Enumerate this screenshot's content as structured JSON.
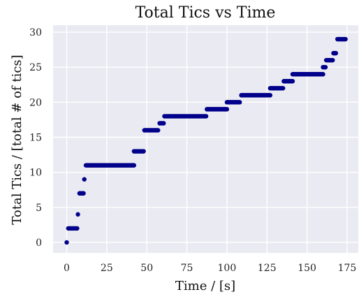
{
  "chart_data": {
    "type": "scatter",
    "title": "Total Tics vs Time",
    "xlabel": "Time / [s]",
    "ylabel": "Total Tics / [total # of tics]",
    "xlim": [
      -8.5,
      182
    ],
    "ylim": [
      -1.5,
      31
    ],
    "xticks": [
      0,
      25,
      50,
      75,
      100,
      125,
      150,
      175
    ],
    "yticks": [
      0,
      5,
      10,
      15,
      20,
      25,
      30
    ],
    "grid": true,
    "background_color": "#EAEAF2",
    "grid_color": "#FFFFFF",
    "point_color": "#00008B",
    "series": [
      {
        "segments": [
          {
            "x_start": 0,
            "x_end": 0,
            "y": 0
          },
          {
            "x_start": 1,
            "x_end": 6.5,
            "y": 2
          },
          {
            "x_start": 7,
            "x_end": 7,
            "y": 4
          },
          {
            "x_start": 8,
            "x_end": 10.5,
            "y": 7
          },
          {
            "x_start": 11,
            "x_end": 11,
            "y": 9
          },
          {
            "x_start": 12,
            "x_end": 42,
            "y": 11
          },
          {
            "x_start": 42,
            "x_end": 48,
            "y": 13
          },
          {
            "x_start": 48.5,
            "x_end": 57,
            "y": 16
          },
          {
            "x_start": 58,
            "x_end": 60.5,
            "y": 17
          },
          {
            "x_start": 61,
            "x_end": 87,
            "y": 18
          },
          {
            "x_start": 87.5,
            "x_end": 100,
            "y": 19
          },
          {
            "x_start": 100,
            "x_end": 108,
            "y": 20
          },
          {
            "x_start": 109,
            "x_end": 127,
            "y": 21
          },
          {
            "x_start": 127,
            "x_end": 135,
            "y": 22
          },
          {
            "x_start": 135.5,
            "x_end": 141,
            "y": 23
          },
          {
            "x_start": 141,
            "x_end": 160,
            "y": 24
          },
          {
            "x_start": 160,
            "x_end": 161.5,
            "y": 25
          },
          {
            "x_start": 162,
            "x_end": 166,
            "y": 26
          },
          {
            "x_start": 166.5,
            "x_end": 168,
            "y": 27
          },
          {
            "x_start": 169,
            "x_end": 174,
            "y": 29
          }
        ]
      }
    ]
  }
}
